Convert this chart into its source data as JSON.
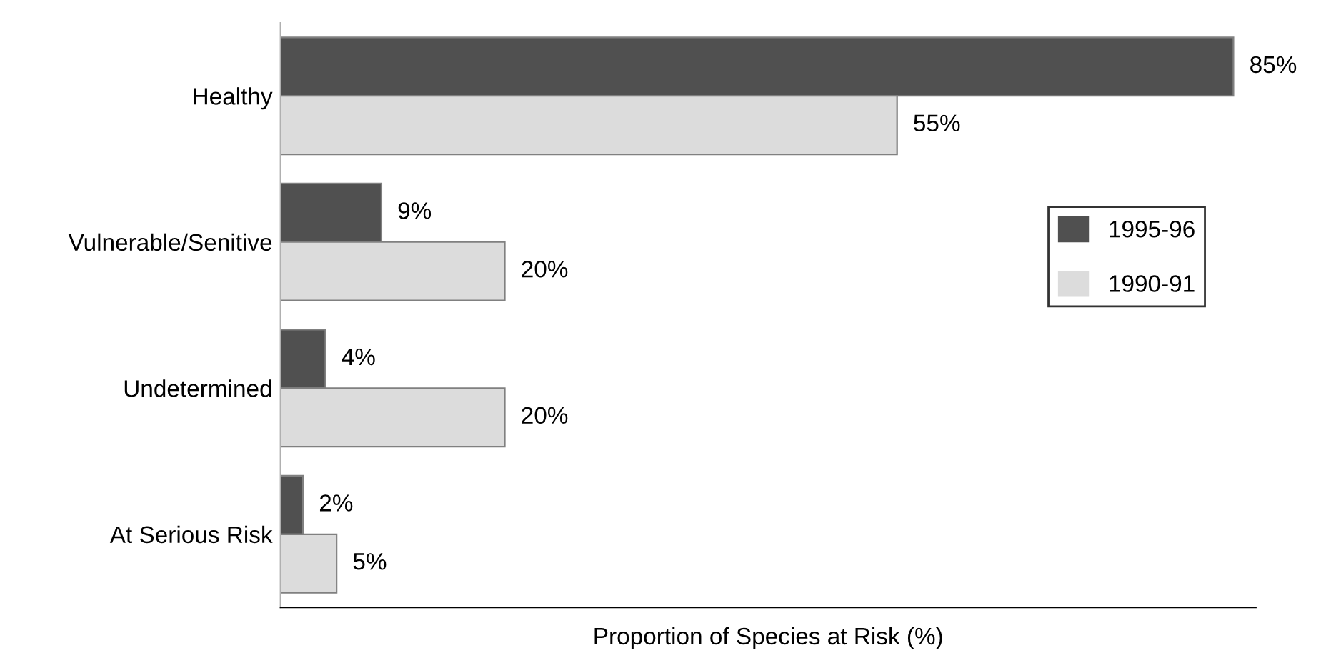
{
  "chart_data": {
    "type": "bar",
    "orientation": "horizontal",
    "xlabel": "Proportion of Species at Risk (%)",
    "categories": [
      "Healthy",
      "Vulnerable/Senitive",
      "Undetermined",
      "At Serious Risk"
    ],
    "series": [
      {
        "name": "1995-96",
        "color": "#505050",
        "values": [
          85,
          9,
          4,
          2
        ],
        "value_labels": [
          "85%",
          "9%",
          "4%",
          "2%"
        ]
      },
      {
        "name": "1990-91",
        "color": "#dcdcdc",
        "values": [
          55,
          20,
          20,
          5
        ],
        "value_labels": [
          "55%",
          "20%",
          "20%",
          "5%"
        ]
      }
    ],
    "xlim": [
      0,
      87
    ],
    "tick_labels": "y",
    "grid": false,
    "legend": "right"
  }
}
